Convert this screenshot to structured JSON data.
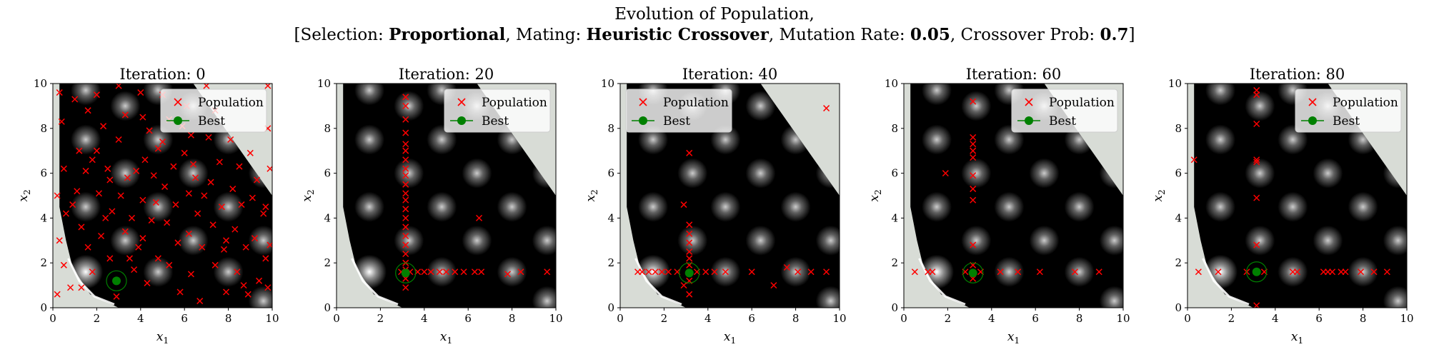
{
  "figure": {
    "suptitle_line1": "Evolution of Population,",
    "suptitle_line2": [
      {
        "text": "[Selection: ",
        "bold": false
      },
      {
        "text": "Proportional",
        "bold": true
      },
      {
        "text": ", Mating: ",
        "bold": false
      },
      {
        "text": "Heuristic Crossover",
        "bold": true
      },
      {
        "text": ", Mutation Rate: ",
        "bold": false
      },
      {
        "text": "0.05",
        "bold": true
      },
      {
        "text": ", Crossover Prob: ",
        "bold": false
      },
      {
        "text": "0.7",
        "bold": true
      },
      {
        "text": "]",
        "bold": false
      }
    ]
  },
  "colors": {
    "population": "#ff0000",
    "best": "#008000",
    "infeasible": "#d8dcd6",
    "peak": "#ffffff",
    "background": "#000000"
  },
  "chart_data": [
    {
      "type": "scatter",
      "title": "Iteration: 0",
      "xlabel": "x1",
      "ylabel": "x2",
      "xlim": [
        0,
        10
      ],
      "ylim": [
        0,
        10
      ],
      "xticks": [
        0,
        2,
        4,
        6,
        8,
        10
      ],
      "yticks": [
        0,
        2,
        4,
        6,
        8,
        10
      ],
      "legend": {
        "placement": "top-right",
        "entries": [
          "Population",
          "Best"
        ]
      },
      "series": [
        {
          "name": "Population",
          "marker": "x",
          "points": [
            [
              0.3,
              9.6
            ],
            [
              0.4,
              8.3
            ],
            [
              0.5,
              6.2
            ],
            [
              0.2,
              5.0
            ],
            [
              0.6,
              4.2
            ],
            [
              0.3,
              3.0
            ],
            [
              0.5,
              1.9
            ],
            [
              0.8,
              0.9
            ],
            [
              0.2,
              0.6
            ],
            [
              1.0,
              9.3
            ],
            [
              1.2,
              7.0
            ],
            [
              1.5,
              6.1
            ],
            [
              1.1,
              5.2
            ],
            [
              1.3,
              3.6
            ],
            [
              1.6,
              2.7
            ],
            [
              1.8,
              1.6
            ],
            [
              1.3,
              0.9
            ],
            [
              2.0,
              9.5
            ],
            [
              2.3,
              8.1
            ],
            [
              2.0,
              7.0
            ],
            [
              2.5,
              6.2
            ],
            [
              2.1,
              5.1
            ],
            [
              2.7,
              4.3
            ],
            [
              2.2,
              3.2
            ],
            [
              2.6,
              2.2
            ],
            [
              2.9,
              0.5
            ],
            [
              3.0,
              9.9
            ],
            [
              3.3,
              8.6
            ],
            [
              3.0,
              7.5
            ],
            [
              3.4,
              5.8
            ],
            [
              3.1,
              5.0
            ],
            [
              3.6,
              4.0
            ],
            [
              3.3,
              3.4
            ],
            [
              3.5,
              2.2
            ],
            [
              3.7,
              1.7
            ],
            [
              4.0,
              9.6
            ],
            [
              4.1,
              8.5
            ],
            [
              4.4,
              7.9
            ],
            [
              4.2,
              6.6
            ],
            [
              4.6,
              5.9
            ],
            [
              4.1,
              4.8
            ],
            [
              4.5,
              3.9
            ],
            [
              4.1,
              3.1
            ],
            [
              4.8,
              2.2
            ],
            [
              4.3,
              1.1
            ],
            [
              5.0,
              9.5
            ],
            [
              5.3,
              8.4
            ],
            [
              5.0,
              7.4
            ],
            [
              5.5,
              6.3
            ],
            [
              5.1,
              5.4
            ],
            [
              5.6,
              4.6
            ],
            [
              5.2,
              3.8
            ],
            [
              5.7,
              2.9
            ],
            [
              5.3,
              1.9
            ],
            [
              5.8,
              0.7
            ],
            [
              6.1,
              9.0
            ],
            [
              6.3,
              7.7
            ],
            [
              6.0,
              6.9
            ],
            [
              6.5,
              5.8
            ],
            [
              6.2,
              5.1
            ],
            [
              6.6,
              4.2
            ],
            [
              6.2,
              3.3
            ],
            [
              6.8,
              2.7
            ],
            [
              6.3,
              1.5
            ],
            [
              6.7,
              0.3
            ],
            [
              7.0,
              9.9
            ],
            [
              7.4,
              8.8
            ],
            [
              7.1,
              7.6
            ],
            [
              7.6,
              6.5
            ],
            [
              7.2,
              5.6
            ],
            [
              7.7,
              4.5
            ],
            [
              7.3,
              3.7
            ],
            [
              7.8,
              2.6
            ],
            [
              7.4,
              1.9
            ],
            [
              7.9,
              0.7
            ],
            [
              8.1,
              7.5
            ],
            [
              8.5,
              6.3
            ],
            [
              8.2,
              5.3
            ],
            [
              8.6,
              4.6
            ],
            [
              8.3,
              3.5
            ],
            [
              8.8,
              2.7
            ],
            [
              8.4,
              1.6
            ],
            [
              8.9,
              0.6
            ],
            [
              9.0,
              6.9
            ],
            [
              9.3,
              5.7
            ],
            [
              9.1,
              4.9
            ],
            [
              9.6,
              4.2
            ],
            [
              9.2,
              3.1
            ],
            [
              9.7,
              2.2
            ],
            [
              9.4,
              1.2
            ],
            [
              9.8,
              9.9
            ],
            [
              9.8,
              8.0
            ],
            [
              9.9,
              6.2
            ],
            [
              9.7,
              4.5
            ],
            [
              9.9,
              2.8
            ],
            [
              9.8,
              0.9
            ],
            [
              1.8,
              6.6
            ],
            [
              2.6,
              5.7
            ],
            [
              3.8,
              6.1
            ],
            [
              4.8,
              7.1
            ],
            [
              5.9,
              8.1
            ],
            [
              6.9,
              5.0
            ],
            [
              7.9,
              3.0
            ],
            [
              8.7,
              1.0
            ],
            [
              6.4,
              6.4
            ],
            [
              4.7,
              4.7
            ],
            [
              3.9,
              2.7
            ],
            [
              2.4,
              4.0
            ],
            [
              0.9,
              4.6
            ],
            [
              1.6,
              8.8
            ]
          ]
        },
        {
          "name": "Best",
          "marker": "o",
          "points": [
            [
              2.9,
              1.2
            ]
          ]
        }
      ]
    },
    {
      "type": "scatter",
      "title": "Iteration: 20",
      "xlabel": "x1",
      "ylabel": "x2",
      "xlim": [
        0,
        10
      ],
      "ylim": [
        0,
        10
      ],
      "xticks": [
        0,
        2,
        4,
        6,
        8,
        10
      ],
      "yticks": [
        0,
        2,
        4,
        6,
        8,
        10
      ],
      "legend": {
        "placement": "top-right",
        "entries": [
          "Population",
          "Best"
        ]
      },
      "series": [
        {
          "name": "Population",
          "marker": "x",
          "points": [
            [
              3.15,
              9.4
            ],
            [
              3.15,
              9.0
            ],
            [
              3.15,
              8.4
            ],
            [
              3.15,
              7.8
            ],
            [
              3.15,
              7.3
            ],
            [
              3.15,
              7.0
            ],
            [
              3.15,
              6.6
            ],
            [
              3.15,
              6.2
            ],
            [
              3.15,
              5.9
            ],
            [
              3.15,
              5.5
            ],
            [
              3.15,
              5.1
            ],
            [
              3.15,
              4.8
            ],
            [
              3.15,
              4.4
            ],
            [
              3.15,
              4.0
            ],
            [
              3.15,
              3.6
            ],
            [
              3.15,
              3.2
            ],
            [
              3.15,
              2.8
            ],
            [
              3.15,
              2.4
            ],
            [
              3.15,
              2.0
            ],
            [
              3.15,
              1.7
            ],
            [
              3.15,
              1.3
            ],
            [
              3.15,
              0.9
            ],
            [
              2.95,
              1.6
            ],
            [
              3.35,
              1.6
            ],
            [
              3.7,
              1.6
            ],
            [
              4.0,
              1.6
            ],
            [
              4.3,
              1.6
            ],
            [
              4.7,
              1.6
            ],
            [
              5.0,
              1.6
            ],
            [
              5.4,
              1.6
            ],
            [
              5.8,
              1.6
            ],
            [
              6.3,
              1.6
            ],
            [
              6.6,
              1.6
            ],
            [
              7.8,
              1.5
            ],
            [
              8.4,
              1.6
            ],
            [
              9.6,
              1.6
            ],
            [
              6.5,
              4.0
            ]
          ]
        },
        {
          "name": "Best",
          "marker": "o",
          "points": [
            [
              3.15,
              1.55
            ]
          ]
        }
      ]
    },
    {
      "type": "scatter",
      "title": "Iteration: 40",
      "xlabel": "x1",
      "ylabel": "x2",
      "xlim": [
        0,
        10
      ],
      "ylim": [
        0,
        10
      ],
      "xticks": [
        0,
        2,
        4,
        6,
        8,
        10
      ],
      "yticks": [
        0,
        2,
        4,
        6,
        8,
        10
      ],
      "legend": {
        "placement": "top-left",
        "entries": [
          "Population",
          "Best"
        ]
      },
      "series": [
        {
          "name": "Population",
          "marker": "x",
          "points": [
            [
              9.4,
              8.9
            ],
            [
              3.15,
              6.9
            ],
            [
              2.9,
              4.6
            ],
            [
              3.15,
              3.7
            ],
            [
              3.15,
              3.3
            ],
            [
              3.15,
              2.9
            ],
            [
              3.15,
              2.5
            ],
            [
              3.15,
              2.2
            ],
            [
              3.15,
              1.9
            ],
            [
              3.15,
              1.2
            ],
            [
              3.15,
              0.6
            ],
            [
              2.9,
              1.0
            ],
            [
              0.8,
              1.6
            ],
            [
              1.0,
              1.6
            ],
            [
              1.3,
              1.6
            ],
            [
              1.6,
              1.6
            ],
            [
              1.9,
              1.6
            ],
            [
              2.2,
              1.6
            ],
            [
              2.6,
              1.6
            ],
            [
              3.5,
              1.6
            ],
            [
              3.9,
              1.6
            ],
            [
              4.3,
              1.6
            ],
            [
              4.8,
              1.6
            ],
            [
              6.0,
              1.6
            ],
            [
              7.6,
              1.8
            ],
            [
              8.1,
              1.6
            ],
            [
              8.7,
              1.6
            ],
            [
              9.4,
              1.6
            ],
            [
              7.0,
              1.0
            ]
          ]
        },
        {
          "name": "Best",
          "marker": "o",
          "points": [
            [
              3.15,
              1.55
            ]
          ]
        }
      ]
    },
    {
      "type": "scatter",
      "title": "Iteration: 60",
      "xlabel": "x1",
      "ylabel": "x2",
      "xlim": [
        0,
        10
      ],
      "ylim": [
        0,
        10
      ],
      "xticks": [
        0,
        2,
        4,
        6,
        8,
        10
      ],
      "yticks": [
        0,
        2,
        4,
        6,
        8,
        10
      ],
      "legend": {
        "placement": "top-right",
        "entries": [
          "Population",
          "Best"
        ]
      },
      "series": [
        {
          "name": "Population",
          "marker": "x",
          "points": [
            [
              3.15,
              9.2
            ],
            [
              3.15,
              7.6
            ],
            [
              3.15,
              7.3
            ],
            [
              3.15,
              7.0
            ],
            [
              3.15,
              6.7
            ],
            [
              3.15,
              5.9
            ],
            [
              3.15,
              5.3
            ],
            [
              3.15,
              4.8
            ],
            [
              3.15,
              2.8
            ],
            [
              3.15,
              1.9
            ],
            [
              3.15,
              1.3
            ],
            [
              1.9,
              6.0
            ],
            [
              0.5,
              1.6
            ],
            [
              1.1,
              1.6
            ],
            [
              1.3,
              1.6
            ],
            [
              2.8,
              1.6
            ],
            [
              3.5,
              1.6
            ],
            [
              4.4,
              1.6
            ],
            [
              5.2,
              1.6
            ],
            [
              6.2,
              1.6
            ],
            [
              7.8,
              1.6
            ],
            [
              8.9,
              1.6
            ]
          ]
        },
        {
          "name": "Best",
          "marker": "o",
          "points": [
            [
              3.15,
              1.55
            ]
          ]
        }
      ]
    },
    {
      "type": "scatter",
      "title": "Iteration: 80",
      "xlabel": "x1",
      "ylabel": "x2",
      "xlim": [
        0,
        10
      ],
      "ylim": [
        0,
        10
      ],
      "xticks": [
        0,
        2,
        4,
        6,
        8,
        10
      ],
      "yticks": [
        0,
        2,
        4,
        6,
        8,
        10
      ],
      "legend": {
        "placement": "top-right",
        "entries": [
          "Population",
          "Best"
        ]
      },
      "series": [
        {
          "name": "Population",
          "marker": "x",
          "points": [
            [
              3.15,
              9.7
            ],
            [
              3.15,
              9.5
            ],
            [
              3.15,
              8.2
            ],
            [
              3.15,
              6.6
            ],
            [
              3.15,
              6.5
            ],
            [
              3.15,
              4.9
            ],
            [
              3.15,
              2.8
            ],
            [
              3.15,
              0.1
            ],
            [
              0.3,
              6.6
            ],
            [
              0.5,
              1.6
            ],
            [
              1.4,
              1.6
            ],
            [
              2.7,
              1.6
            ],
            [
              3.5,
              1.6
            ],
            [
              4.8,
              1.6
            ],
            [
              5.0,
              1.6
            ],
            [
              6.2,
              1.6
            ],
            [
              6.4,
              1.6
            ],
            [
              6.6,
              1.6
            ],
            [
              7.0,
              1.6
            ],
            [
              7.2,
              1.6
            ],
            [
              7.9,
              1.6
            ],
            [
              8.5,
              1.6
            ],
            [
              9.1,
              1.6
            ]
          ]
        },
        {
          "name": "Best",
          "marker": "o",
          "points": [
            [
              3.15,
              1.6
            ]
          ]
        }
      ]
    }
  ]
}
